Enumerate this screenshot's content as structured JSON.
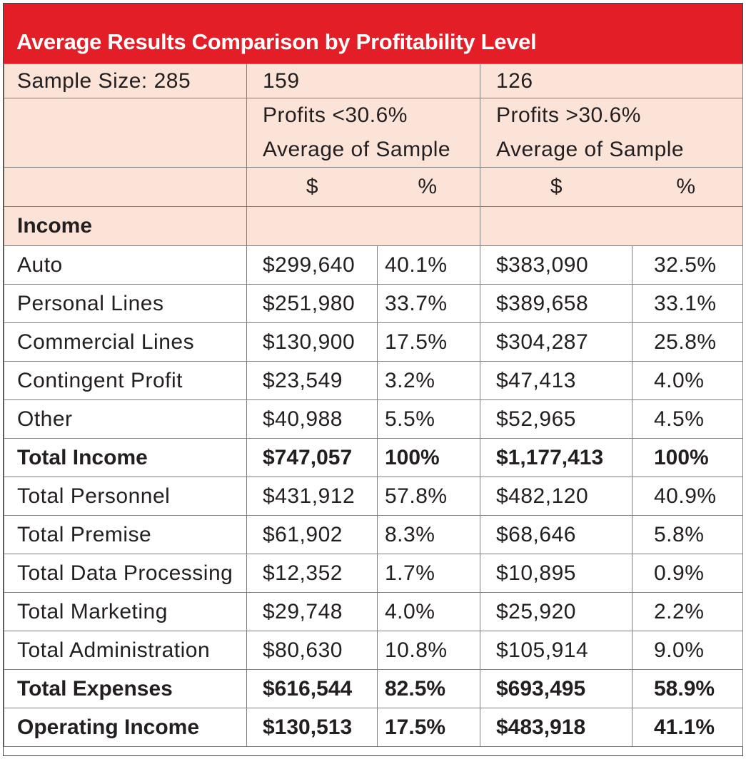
{
  "title": "Average Results Comparison by Profitability Level",
  "header": {
    "sample_label": "Sample Size: 285",
    "group1_count": "159",
    "group2_count": "126",
    "group1_line1": "Profits <30.6%",
    "group1_line2": "Average of Sample",
    "group2_line1": "Profits >30.6%",
    "group2_line2": "Average of Sample",
    "dollar": "$",
    "percent": "%"
  },
  "section_label": "Income",
  "rows": [
    {
      "label": "Auto",
      "g1_dollar": "$299,640",
      "g1_pct": "40.1%",
      "g2_dollar": "$383,090",
      "g2_pct": "32.5%"
    },
    {
      "label": "Personal Lines",
      "g1_dollar": "$251,980",
      "g1_pct": "33.7%",
      "g2_dollar": "$389,658",
      "g2_pct": "33.1%"
    },
    {
      "label": "Commercial Lines",
      "g1_dollar": "$130,900",
      "g1_pct": "17.5%",
      "g2_dollar": "$304,287",
      "g2_pct": "25.8%"
    },
    {
      "label": "Contingent Profit",
      "g1_dollar": "$23,549",
      "g1_pct": "3.2%",
      "g2_dollar": "$47,413",
      "g2_pct": "4.0%"
    },
    {
      "label": "Other",
      "g1_dollar": "$40,988",
      "g1_pct": "5.5%",
      "g2_dollar": "$52,965",
      "g2_pct": "4.5%"
    },
    {
      "label": "Total Income",
      "g1_dollar": "$747,057",
      "g1_pct": "100%",
      "g2_dollar": "$1,177,413",
      "g2_pct": "100%"
    },
    {
      "label": "Total Personnel",
      "g1_dollar": "$431,912",
      "g1_pct": "57.8%",
      "g2_dollar": "$482,120",
      "g2_pct": "40.9%"
    },
    {
      "label": "Total Premise",
      "g1_dollar": "$61,902",
      "g1_pct": "8.3%",
      "g2_dollar": "$68,646",
      "g2_pct": "5.8%"
    },
    {
      "label": "Total Data Processing",
      "g1_dollar": "$12,352",
      "g1_pct": "1.7%",
      "g2_dollar": "$10,895",
      "g2_pct": "0.9%"
    },
    {
      "label": "Total Marketing",
      "g1_dollar": "$29,748",
      "g1_pct": "4.0%",
      "g2_dollar": "$25,920",
      "g2_pct": "2.2%"
    },
    {
      "label": "Total Administration",
      "g1_dollar": "$80,630",
      "g1_pct": "10.8%",
      "g2_dollar": "$105,914",
      "g2_pct": "9.0%"
    },
    {
      "label": "Total Expenses",
      "g1_dollar": "$616,544",
      "g1_pct": "82.5%",
      "g2_dollar": "$693,495",
      "g2_pct": "58.9%"
    },
    {
      "label": "Operating Income",
      "g1_dollar": "$130,513",
      "g1_pct": "17.5%",
      "g2_dollar": "$483,918",
      "g2_pct": "41.1%"
    }
  ],
  "colors": {
    "title_bg": "#e31e26",
    "header_bg": "#fbe3d8",
    "text": "#231f20"
  }
}
